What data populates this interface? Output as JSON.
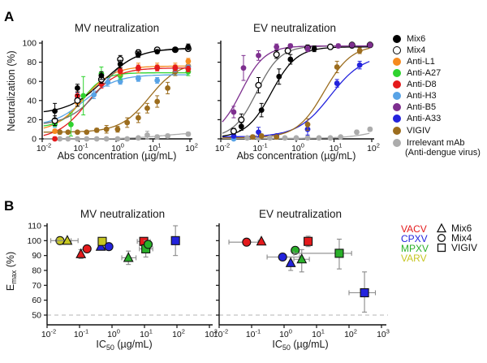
{
  "figure": {
    "panel_a_label": "A",
    "panel_b_label": "B",
    "titles": {
      "mv": "MV neutralization",
      "ev": "EV neutralization"
    },
    "ylabel_a": "Neutralization (%)",
    "emax_prefix": "E",
    "emax_sub": "max",
    "emax_suffix": " (%)",
    "xlabel_abs": "Abs concentration (µg/mL)",
    "ic50_prefix": "IC",
    "ic50_sub": "50",
    "ic50_suffix": " (µg/mL)"
  },
  "legend_a": {
    "items": [
      {
        "label": "Mix6",
        "color": "#000000",
        "open": false
      },
      {
        "label": "Mix4",
        "color": "#ffffff",
        "open": true
      },
      {
        "label": "Anti-L1",
        "color": "#F68B1F",
        "open": false
      },
      {
        "label": "Anti-A27",
        "color": "#2FD32F",
        "open": false
      },
      {
        "label": "Anti-D8",
        "color": "#E41A1C",
        "open": false
      },
      {
        "label": "Anti-H3",
        "color": "#58A3E6",
        "open": false
      },
      {
        "label": "Anti-B5",
        "color": "#7E2F8F",
        "open": false
      },
      {
        "label": "Anti-A33",
        "color": "#2323DD",
        "open": false
      },
      {
        "label": "VIGIV",
        "color": "#9C6D1E",
        "open": false
      },
      {
        "label": "Irrelevant mAb",
        "label2": "(Anti-dengue virus)",
        "color": "#ACACAC",
        "open": false
      }
    ]
  },
  "legend_b": {
    "viruses": [
      {
        "label": "VACV",
        "color": "#E41A1C"
      },
      {
        "label": "CPXV",
        "color": "#2323DD"
      },
      {
        "label": "MPXV",
        "color": "#2AB02A"
      },
      {
        "label": "VARV",
        "color": "#C6C621"
      }
    ],
    "mixes": [
      {
        "label": "Mix6",
        "shape": "triangle"
      },
      {
        "label": "Mix4",
        "shape": "circle"
      },
      {
        "label": "VIGIV",
        "shape": "square"
      }
    ]
  },
  "chart_data": [
    {
      "id": "a-mv",
      "type": "line",
      "title": "MV neutralization",
      "xlabel": "Abs concentration (µg/mL)",
      "ylabel": "Neutralization (%)",
      "xscale": "log",
      "xlim": [
        0.01,
        100
      ],
      "ylim": [
        0,
        100
      ],
      "xticks": [
        -2,
        -1,
        0,
        1,
        2
      ],
      "yticks": [
        0,
        20,
        40,
        60,
        80,
        100
      ],
      "ytick_labels": true,
      "series": [
        {
          "name": "Irrelevant mAb",
          "color": "#ACACAC",
          "open": false,
          "x": [
            0.03,
            0.05,
            0.09,
            0.16,
            0.3,
            0.55,
            1.1,
            2,
            4,
            7,
            13,
            25,
            90
          ],
          "y": [
            0,
            0,
            0,
            0,
            0,
            0,
            0,
            0,
            1,
            4,
            2,
            3,
            5
          ],
          "yerr": [
            1,
            1,
            1,
            1,
            1,
            1,
            1,
            1,
            1,
            4,
            2,
            2,
            2
          ],
          "fit": {
            "bottom": 0,
            "top": 7,
            "ec50": 20,
            "hill": 0.9
          }
        },
        {
          "name": "VIGIV",
          "color": "#9C6D1E",
          "open": false,
          "x": [
            0.03,
            0.05,
            0.09,
            0.16,
            0.3,
            0.55,
            1.1,
            2,
            4,
            7,
            13,
            25,
            40,
            90
          ],
          "y": [
            7,
            7,
            7,
            7,
            9,
            10,
            10,
            17,
            22,
            32,
            39,
            53,
            70,
            76
          ],
          "yerr": [
            2,
            1,
            1,
            1,
            2,
            4,
            3,
            5,
            5,
            5,
            6,
            6,
            4,
            4
          ],
          "fit": {
            "bottom": 7,
            "top": 80,
            "ec50": 8,
            "hill": 1.1
          }
        },
        {
          "name": "Anti-H3",
          "color": "#58A3E6",
          "open": false,
          "x": [
            0.022,
            0.09,
            0.25,
            0.6,
            1.3,
            4,
            13,
            40,
            90
          ],
          "y": [
            15,
            44,
            46,
            59,
            60,
            63,
            61,
            73,
            75
          ],
          "yerr": [
            3,
            4,
            4,
            4,
            3,
            3,
            3,
            3,
            3
          ],
          "fit": {
            "bottom": 13,
            "top": 67,
            "ec50": 0.14,
            "hill": 1.0
          }
        },
        {
          "name": "Anti-A27",
          "color": "#2FD32F",
          "open": false,
          "x": [
            0.022,
            0.06,
            0.13,
            0.4,
            1.3,
            90
          ],
          "y": [
            16,
            15,
            45,
            68,
            66,
            70
          ],
          "yerr": [
            3,
            12,
            20,
            7,
            4,
            4
          ],
          "fit": {
            "bottom": 12,
            "top": 69,
            "ec50": 0.12,
            "hill": 1.5
          }
        },
        {
          "name": "Anti-L1",
          "color": "#F68B1F",
          "open": false,
          "x": [
            0.022,
            0.09,
            0.4,
            1.3,
            4,
            13,
            40,
            90
          ],
          "y": [
            8,
            38,
            62,
            70,
            74,
            75,
            75,
            81
          ],
          "yerr": [
            2,
            4,
            5,
            4,
            5,
            4,
            4,
            3
          ],
          "fit": {
            "bottom": 7,
            "top": 76,
            "ec50": 0.13,
            "hill": 1.1
          }
        },
        {
          "name": "Anti-D8",
          "color": "#E41A1C",
          "open": false,
          "x": [
            0.022,
            0.09,
            0.4,
            1.3,
            4,
            13,
            40,
            90
          ],
          "y": [
            0,
            45,
            57,
            71,
            74,
            74,
            74,
            73
          ],
          "yerr": [
            2,
            4,
            4,
            3,
            3,
            3,
            3,
            3
          ],
          "fit": {
            "bottom": 0,
            "top": 74,
            "ec50": 0.16,
            "hill": 1.1
          }
        },
        {
          "name": "Mix4",
          "color": "#ffffff",
          "open": true,
          "line_color": "#6F6F6F",
          "err_color": "#000000",
          "x": [
            0.022,
            0.09,
            0.4,
            1.3,
            4,
            13,
            40,
            90
          ],
          "y": [
            19,
            40,
            62,
            83,
            90,
            93,
            93,
            94
          ],
          "yerr": [
            5,
            6,
            4,
            4,
            3,
            2,
            2,
            2
          ],
          "fit": {
            "bottom": 14,
            "top": 94,
            "ec50": 0.4,
            "hill": 1.0
          }
        },
        {
          "name": "Mix6",
          "color": "#000000",
          "open": false,
          "x": [
            0.022,
            0.09,
            0.4,
            1.3,
            4,
            13,
            40,
            90
          ],
          "y": [
            29,
            53,
            66,
            78,
            88,
            91,
            93,
            96
          ],
          "yerr": [
            8,
            4,
            4,
            4,
            3,
            2,
            2,
            3
          ],
          "fit": {
            "bottom": 26,
            "top": 95,
            "ec50": 0.45,
            "hill": 0.9
          }
        }
      ]
    },
    {
      "id": "a-ev",
      "type": "line",
      "title": "EV neutralization",
      "xlabel": "Abs concentration (µg/mL)",
      "ylabel": "Neutralization (%)",
      "xscale": "log",
      "xlim": [
        0.01,
        100
      ],
      "ylim": [
        0,
        100
      ],
      "xticks": [
        -2,
        -1,
        0,
        1,
        2
      ],
      "yticks": [
        0,
        20,
        40,
        60,
        80,
        100
      ],
      "ytick_labels": false,
      "series": [
        {
          "name": "Irrelevant mAb",
          "color": "#ACACAC",
          "open": false,
          "x": [
            0.022,
            0.05,
            0.1,
            0.2,
            0.5,
            1,
            2,
            4,
            8,
            15,
            40,
            90
          ],
          "y": [
            7,
            1,
            1,
            1,
            1,
            1,
            1,
            1,
            1,
            2,
            7,
            10
          ],
          "yerr": [
            2,
            1,
            1,
            1,
            1,
            1,
            1,
            1,
            1,
            1,
            2,
            2
          ],
          "fit": {
            "bottom": 0.5,
            "top": 18,
            "ec50": 200,
            "hill": 1.0
          }
        },
        {
          "name": "Anti-H3",
          "color": "#58A3E6",
          "open": false,
          "x": [
            0.022
          ],
          "y": [
            0
          ],
          "yerr": [
            1
          ],
          "fit": null
        },
        {
          "name": "Anti-A33",
          "color": "#2323DD",
          "open": false,
          "x": [
            0.022,
            0.1,
            0.3,
            2,
            12,
            48
          ],
          "y": [
            3,
            7,
            3,
            10,
            58,
            77
          ],
          "yerr": [
            2,
            5,
            2,
            6,
            4,
            4
          ],
          "fit": {
            "bottom": 2,
            "top": 88,
            "ec50": 8,
            "hill": 1.0
          }
        },
        {
          "name": "VIGIV",
          "color": "#9C6D1E",
          "open": false,
          "x": [
            0.07,
            0.12,
            0.3,
            2,
            12,
            48
          ],
          "y": [
            2,
            3,
            2,
            15,
            75,
            92
          ],
          "yerr": [
            2,
            2,
            2,
            6,
            6,
            3
          ],
          "fit": {
            "bottom": 1,
            "top": 98,
            "ec50": 5.5,
            "hill": 1.2
          }
        },
        {
          "name": "Mix6",
          "color": "#000000",
          "open": false,
          "x": [
            0.035,
            0.12,
            0.35,
            0.7,
            3,
            30
          ],
          "y": [
            13,
            30,
            65,
            83,
            94,
            97
          ],
          "yerr": [
            4,
            7,
            8,
            5,
            3,
            2
          ],
          "fit": {
            "bottom": 1,
            "top": 96,
            "ec50": 0.22,
            "hill": 1.3
          }
        },
        {
          "name": "Mix4",
          "color": "#ffffff",
          "open": true,
          "line_color": "#6F6F6F",
          "err_color": "#000000",
          "x": [
            0.022,
            0.035,
            0.1,
            0.3,
            0.6,
            2,
            8,
            30,
            90
          ],
          "y": [
            8,
            20,
            56,
            88,
            92,
            95,
            96,
            98,
            98
          ],
          "yerr": [
            3,
            6,
            8,
            4,
            3,
            3,
            2,
            2,
            2
          ],
          "fit": {
            "bottom": 1,
            "top": 97,
            "ec50": 0.09,
            "hill": 1.4
          }
        },
        {
          "name": "Anti-B5",
          "color": "#7E2F8F",
          "open": false,
          "x": [
            0.022,
            0.04,
            0.1,
            0.3,
            0.7,
            2,
            13,
            30,
            90
          ],
          "y": [
            28,
            74,
            87,
            96,
            97,
            94,
            97,
            98,
            98
          ],
          "yerr": [
            6,
            13,
            5,
            3,
            2,
            3,
            2,
            2,
            2
          ],
          "fit": {
            "bottom": 2,
            "top": 97,
            "ec50": 0.035,
            "hill": 1.4
          }
        }
      ]
    },
    {
      "id": "b-mv",
      "type": "scatter",
      "title": "MV neutralization",
      "xlabel": "IC50 (µg/mL)",
      "ylabel": "Emax (%)",
      "xscale": "log",
      "xlim": [
        0.01,
        1000
      ],
      "ylim": [
        50,
        110
      ],
      "xticks": [
        -2,
        -1,
        0,
        1,
        2,
        3
      ],
      "yticks": [
        50,
        60,
        70,
        80,
        90,
        100,
        110
      ],
      "ytick_labels": true,
      "dashed_y": 50,
      "points": [
        {
          "virus": "VARV",
          "group": "Mix4",
          "shape": "circle",
          "color": "#C6C621",
          "x": 0.025,
          "y": 100,
          "xerr": [
            0.013,
            0.055
          ]
        },
        {
          "virus": "VARV",
          "group": "Mix6",
          "shape": "triangle",
          "color": "#C6C621",
          "x": 0.042,
          "y": 100,
          "xerr": [
            0.02,
            0.09
          ]
        },
        {
          "virus": "VACV",
          "group": "Mix6",
          "shape": "triangle",
          "color": "#E41A1C",
          "x": 0.11,
          "y": 91,
          "yerr": [
            88,
            94
          ]
        },
        {
          "virus": "VACV",
          "group": "Mix4",
          "shape": "circle",
          "color": "#E41A1C",
          "x": 0.17,
          "y": 94.5
        },
        {
          "virus": "CPXV",
          "group": "Mix6",
          "shape": "triangle",
          "color": "#2323DD",
          "x": 0.45,
          "y": 96
        },
        {
          "virus": "VARV",
          "group": "VIGIV",
          "shape": "square",
          "color": "#C6C621",
          "x": 0.5,
          "y": 99.5
        },
        {
          "virus": "CPXV",
          "group": "Mix4",
          "shape": "circle",
          "color": "#2323DD",
          "x": 0.8,
          "y": 96
        },
        {
          "virus": "MPXV",
          "group": "Mix6",
          "shape": "triangle",
          "color": "#2AB02A",
          "x": 3.2,
          "y": 88.5,
          "xerr": [
            2,
            5.5
          ],
          "yerr": [
            84,
            93
          ]
        },
        {
          "virus": "VACV",
          "group": "VIGIV",
          "shape": "square",
          "color": "#E41A1C",
          "x": 9.5,
          "y": 99.5,
          "xerr": [
            6,
            15
          ]
        },
        {
          "virus": "MPXV",
          "group": "VIGIV",
          "shape": "square",
          "color": "#2AB02A",
          "x": 11,
          "y": 94.5,
          "xerr": [
            7,
            18
          ],
          "yerr": [
            89,
            100
          ]
        },
        {
          "virus": "MPXV",
          "group": "Mix4",
          "shape": "circle",
          "color": "#2AB02A",
          "x": 13,
          "y": 97.5
        },
        {
          "virus": "CPXV",
          "group": "VIGIV",
          "shape": "square",
          "color": "#2323DD",
          "x": 90,
          "y": 100,
          "yerr": [
            90,
            110
          ]
        }
      ]
    },
    {
      "id": "b-ev",
      "type": "scatter",
      "title": "EV neutralization",
      "xlabel": "IC50 (µg/mL)",
      "ylabel": "Emax (%)",
      "xscale": "log",
      "xlim": [
        0.01,
        1000
      ],
      "ylim": [
        50,
        110
      ],
      "xticks": [
        -2,
        -1,
        0,
        1,
        2,
        3
      ],
      "yticks": [
        50,
        60,
        70,
        80,
        90,
        100,
        110
      ],
      "ytick_labels": false,
      "dashed_y": 50,
      "points": [
        {
          "virus": "VACV",
          "group": "Mix4",
          "shape": "circle",
          "color": "#E41A1C",
          "x": 0.07,
          "y": 99,
          "xerr": [
            0.02,
            0.16
          ]
        },
        {
          "virus": "VACV",
          "group": "Mix6",
          "shape": "triangle",
          "color": "#E41A1C",
          "x": 0.2,
          "y": 99.5
        },
        {
          "virus": "CPXV",
          "group": "Mix4",
          "shape": "circle",
          "color": "#2323DD",
          "x": 0.9,
          "y": 89,
          "xerr": [
            0.3,
            3
          ]
        },
        {
          "virus": "CPXV",
          "group": "Mix6",
          "shape": "triangle",
          "color": "#2323DD",
          "x": 1.6,
          "y": 85,
          "yerr": [
            80,
            89
          ]
        },
        {
          "virus": "MPXV",
          "group": "Mix4",
          "shape": "circle",
          "color": "#2AB02A",
          "x": 2.2,
          "y": 93.5
        },
        {
          "virus": "MPXV",
          "group": "Mix6",
          "shape": "triangle",
          "color": "#2AB02A",
          "x": 3.5,
          "y": 87.5,
          "xerr": [
            2,
            6
          ],
          "yerr": [
            79,
            94
          ]
        },
        {
          "virus": "VACV",
          "group": "VIGIV",
          "shape": "square",
          "color": "#E41A1C",
          "x": 5.5,
          "y": 99.5,
          "yerr": [
            96,
            103
          ]
        },
        {
          "virus": "MPXV",
          "group": "VIGIV",
          "shape": "square",
          "color": "#2AB02A",
          "x": 50,
          "y": 91.5,
          "xerr": [
            2,
            120
          ],
          "yerr": [
            81,
            101
          ]
        },
        {
          "virus": "CPXV",
          "group": "VIGIV",
          "shape": "square",
          "color": "#2323DD",
          "x": 300,
          "y": 65,
          "xerr": [
            100,
            650
          ],
          "yerr": [
            52,
            79
          ]
        }
      ]
    }
  ]
}
